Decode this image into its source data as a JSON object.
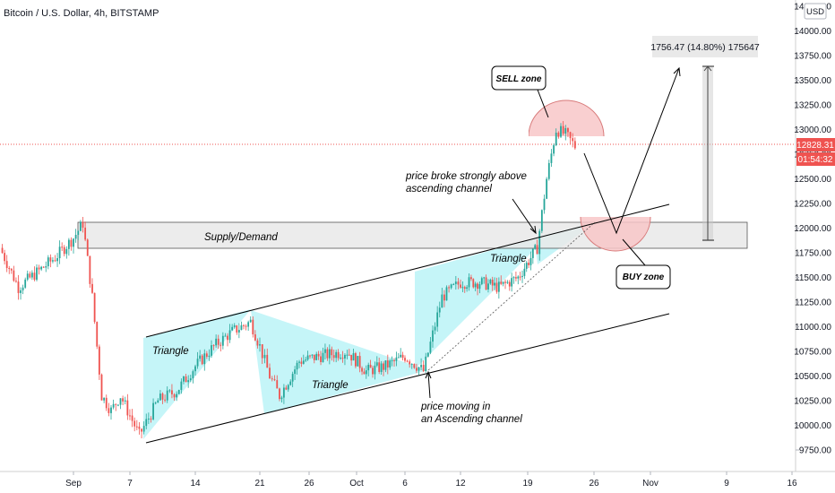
{
  "header": {
    "title": "Bitcoin / U.S. Dollar, 4h, BITSTAMP"
  },
  "currency_badge": "USD",
  "last_price": {
    "value": "12828.31",
    "countdown": "01:54:32"
  },
  "price_axis": {
    "ticks": [
      "14250.00",
      "14000.00",
      "13750.00",
      "13500.00",
      "13250.00",
      "13000.00",
      "12750.00",
      "12500.00",
      "12250.00",
      "12000.00",
      "11750.00",
      "11500.00",
      "11250.00",
      "11000.00",
      "10750.00",
      "10500.00",
      "10250.00",
      "10000.00",
      "9750.00"
    ]
  },
  "time_axis": {
    "ticks": [
      "Sep",
      "7",
      "14",
      "21",
      "26",
      "Oct",
      "6",
      "12",
      "19",
      "26",
      "Nov",
      "9",
      "16"
    ]
  },
  "annotations": {
    "measure": "1756.47 (14.80%) 175647",
    "sell_zone": "SELL zone",
    "buy_zone": "BUY zone",
    "supply_demand": "Supply/Demand",
    "triangle": "Triangle",
    "breakout_line1": "price broke strongly above",
    "breakout_line2": "ascending channel",
    "channel_line1": "price moving in",
    "channel_line2": "an Ascending channel"
  },
  "chart_data": {
    "type": "candlestick",
    "symbol": "Bitcoin / U.S. Dollar",
    "interval": "4h",
    "exchange": "BITSTAMP",
    "currency": "USD",
    "x_ticks": [
      "Sep",
      "7",
      "14",
      "21",
      "26",
      "Oct",
      "6",
      "12",
      "19",
      "26",
      "Nov",
      "9",
      "16"
    ],
    "y_ticks": [
      14250,
      14000,
      13750,
      13500,
      13250,
      13000,
      12750,
      12500,
      12250,
      12000,
      11750,
      11500,
      11250,
      11000,
      10750,
      10500,
      10250,
      10000,
      9750
    ],
    "ylim": [
      9650,
      14330
    ],
    "last_price": 12828.31,
    "path_points": [
      {
        "x": "Aug 24",
        "y": 11800
      },
      {
        "x": "Aug 26",
        "y": 11400
      },
      {
        "x": "Aug 28",
        "y": 11550
      },
      {
        "x": "Aug 30",
        "y": 11700
      },
      {
        "x": "Sep 1",
        "y": 11900
      },
      {
        "x": "Sep 2",
        "y": 12050
      },
      {
        "x": "Sep 3",
        "y": 11300
      },
      {
        "x": "Sep 4",
        "y": 10300
      },
      {
        "x": "Sep 5",
        "y": 10150
      },
      {
        "x": "Sep 6",
        "y": 10300
      },
      {
        "x": "Sep 8",
        "y": 9900
      },
      {
        "x": "Sep 10",
        "y": 10250
      },
      {
        "x": "Sep 12",
        "y": 10350
      },
      {
        "x": "Sep 14",
        "y": 10600
      },
      {
        "x": "Sep 16",
        "y": 10800
      },
      {
        "x": "Sep 18",
        "y": 10950
      },
      {
        "x": "Sep 20",
        "y": 11050
      },
      {
        "x": "Sep 21",
        "y": 10800
      },
      {
        "x": "Sep 22",
        "y": 10500
      },
      {
        "x": "Sep 23",
        "y": 10300
      },
      {
        "x": "Sep 25",
        "y": 10650
      },
      {
        "x": "Sep 27",
        "y": 10700
      },
      {
        "x": "Sep 30",
        "y": 10750
      },
      {
        "x": "Oct 2",
        "y": 10550
      },
      {
        "x": "Oct 4",
        "y": 10600
      },
      {
        "x": "Oct 6",
        "y": 10700
      },
      {
        "x": "Oct 8",
        "y": 10550
      },
      {
        "x": "Oct 10",
        "y": 11300
      },
      {
        "x": "Oct 12",
        "y": 11450
      },
      {
        "x": "Oct 14",
        "y": 11450
      },
      {
        "x": "Oct 16",
        "y": 11400
      },
      {
        "x": "Oct 18",
        "y": 11500
      },
      {
        "x": "Oct 20",
        "y": 11800
      },
      {
        "x": "Oct 21",
        "y": 12500
      },
      {
        "x": "Oct 22",
        "y": 13000
      },
      {
        "x": "Oct 23",
        "y": 12950
      },
      {
        "x": "Oct 24",
        "y": 12830
      }
    ],
    "zones": {
      "supply_demand": {
        "from": 11790,
        "to": 12040
      },
      "measure_change": 1756.47,
      "measure_percent": 14.8
    }
  }
}
